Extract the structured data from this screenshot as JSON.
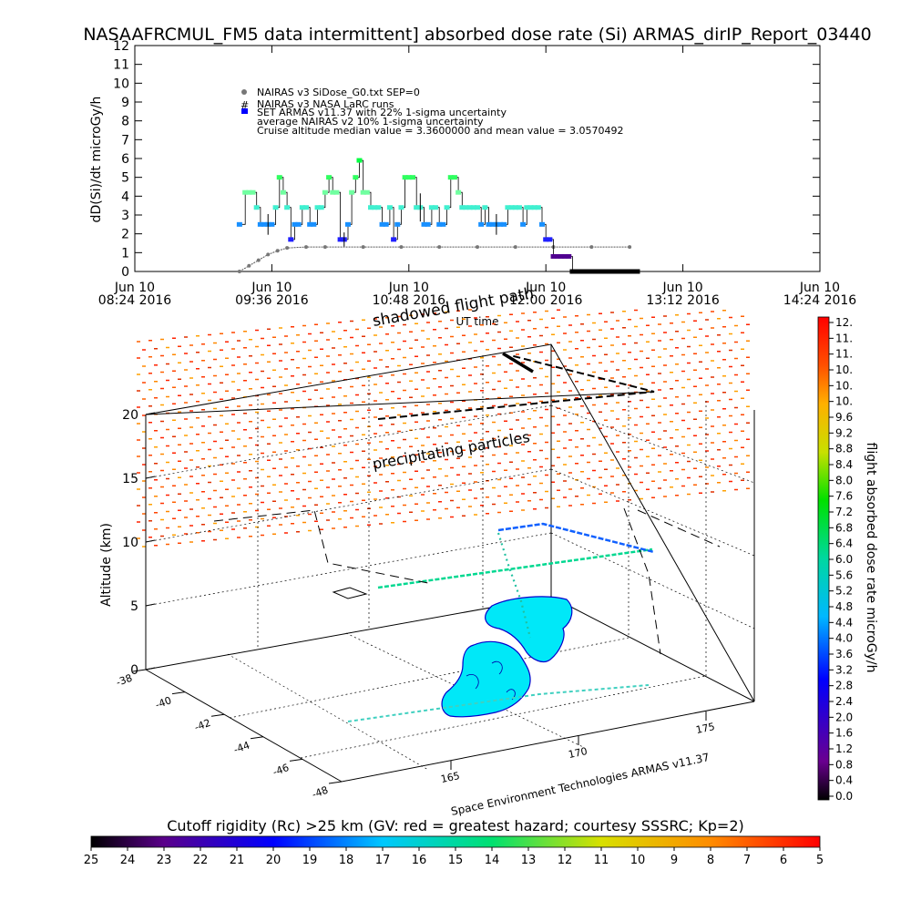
{
  "chart_data": [
    {
      "type": "line",
      "title": "NASAAFRCMUL_FM5 data intermittent] absorbed dose rate (Si) ARMAS_dirIP_Report_03440",
      "ylabel": "dD(Si)/dt microGy/h",
      "xlabel": "UT time",
      "ylim": [
        0,
        12
      ],
      "yticks": [
        "0",
        "1",
        "2",
        "3",
        "4",
        "5",
        "6",
        "7",
        "8",
        "9",
        "10",
        "11",
        "12"
      ],
      "xticks": [
        {
          "line1": "Jun 10",
          "line2": "08:24 2016"
        },
        {
          "line1": "Jun 10",
          "line2": "09:36 2016"
        },
        {
          "line1": "Jun 10",
          "line2": "10:48 2016"
        },
        {
          "line1": "Jun 10",
          "line2": "12:00 2016"
        },
        {
          "line1": "Jun 10",
          "line2": "13:12 2016"
        },
        {
          "line1": "Jun 10",
          "line2": "14:24 2016"
        }
      ],
      "legend": [
        "NAIRAS v3 SiDose_G0.txt SEP=0",
        "NAIRAS v3 NASA LaRC runs",
        "SET ARMAS v11.37 with 22% 1-sigma uncertainty",
        "average NAIRAS v2 10% 1-sigma uncertainty",
        "Cruise altitude median value = 3.3600000 and mean value = 3.0570492"
      ],
      "legend_placement": "top-left",
      "colors": {
        "nairas": "#707070",
        "armas_marker": "#0000ff"
      },
      "series": [
        {
          "name": "SET ARMAS v11.37 with 22% 1-sigma uncertainty",
          "x_minutes_from_0824": [
            55,
            58,
            60,
            62,
            64,
            66,
            68,
            70,
            72,
            74,
            76,
            78,
            80,
            82,
            84,
            86,
            88,
            90,
            92,
            94,
            96,
            98,
            100,
            102,
            104,
            106,
            108,
            110,
            112,
            114,
            116,
            118,
            120,
            122,
            124,
            126,
            128,
            130,
            132,
            134,
            136,
            138,
            140,
            142,
            144,
            146,
            148,
            150,
            152,
            154,
            156,
            158,
            160,
            162,
            164,
            166,
            168,
            170,
            172,
            174,
            176,
            178,
            180,
            182,
            184,
            186,
            188,
            190,
            192,
            194,
            196,
            198,
            200,
            202,
            204,
            206,
            208,
            210,
            212,
            214,
            216,
            218,
            220,
            222,
            224,
            226,
            228,
            230,
            232,
            234,
            236,
            238,
            240,
            242,
            244,
            246,
            248,
            250,
            252,
            254,
            256,
            258,
            260,
            262,
            264
          ],
          "values": [
            2.5,
            4.2,
            4.2,
            4.2,
            3.4,
            2.5,
            2.5,
            2.5,
            2.5,
            3.4,
            5.0,
            4.2,
            3.4,
            1.7,
            2.5,
            2.5,
            3.4,
            3.4,
            2.5,
            2.5,
            3.4,
            3.4,
            4.2,
            5.0,
            4.2,
            4.2,
            1.7,
            1.7,
            2.5,
            4.2,
            5.0,
            5.9,
            4.2,
            4.2,
            3.4,
            3.4,
            3.4,
            2.5,
            2.5,
            3.4,
            1.7,
            2.5,
            3.4,
            5.0,
            5.0,
            5.0,
            3.4,
            3.4,
            2.5,
            2.5,
            3.4,
            3.4,
            2.5,
            2.5,
            3.4,
            5.0,
            5.0,
            4.2,
            3.4,
            3.4,
            3.4,
            3.4,
            3.4,
            2.5,
            3.4,
            2.5,
            2.5,
            2.5,
            2.5,
            2.5,
            3.4,
            3.4,
            3.4,
            3.4,
            2.5,
            3.4,
            3.4,
            3.4,
            3.4,
            2.5,
            1.7,
            1.7,
            0.8,
            0.8,
            0.8,
            0.8,
            0.8,
            0.0,
            0.0,
            0.0,
            0.0,
            0.0,
            0.0,
            0.0,
            0.0,
            0.0,
            0.0,
            0.0,
            0.0,
            0.0,
            0.0,
            0.0,
            0.0,
            0.0,
            0.0
          ]
        },
        {
          "name": "NAIRAS v3 SiDose_G0.txt SEP=0",
          "x_minutes_from_0824": [
            55,
            60,
            65,
            70,
            75,
            80,
            90,
            100,
            120,
            140,
            160,
            180,
            200,
            220,
            240,
            260
          ],
          "values": [
            0.0,
            0.3,
            0.6,
            0.9,
            1.1,
            1.25,
            1.3,
            1.3,
            1.3,
            1.3,
            1.3,
            1.3,
            1.3,
            1.3,
            1.3,
            1.3
          ]
        }
      ]
    },
    {
      "type": "scatter",
      "subtype": "3d-trajectory",
      "zlabel": "Altitude (km)",
      "ztick_values": [
        "0",
        "5",
        "10",
        "15",
        "20"
      ],
      "ytick_values": [
        "-38",
        "-40",
        "-42",
        "-44",
        "-46",
        "-48"
      ],
      "xtick_values": [
        "165",
        "170",
        "175"
      ],
      "annotations": [
        "shadowed flight path",
        "precipitating particles",
        "Space Environment Technologies ARMAS v11.37"
      ],
      "colorbar_label": "flight absorbed dose rate microGy/h",
      "colorbar_ticks": [
        "12.",
        "11.",
        "11.",
        "10.",
        "10.",
        "10.",
        "9.6",
        "9.2",
        "8.8",
        "8.4",
        "8.0",
        "7.6",
        "7.2",
        "6.8",
        "6.4",
        "6.0",
        "5.6",
        "5.2",
        "4.8",
        "4.4",
        "4.0",
        "3.6",
        "3.2",
        "2.8",
        "2.4",
        "2.0",
        "1.6",
        "1.2",
        "0.8",
        "0.4",
        "0.0"
      ]
    },
    {
      "type": "heatmap",
      "subtype": "colorbar",
      "title": "Cutoff rigidity (Rc) >25 km (GV: red = greatest hazard; courtesy SSSRC; Kp=2)",
      "ticks": [
        "25",
        "24",
        "23",
        "22",
        "21",
        "20",
        "19",
        "18",
        "17",
        "16",
        "15",
        "14",
        "13",
        "12",
        "11",
        "10",
        "9",
        "8",
        "7",
        "6",
        "5"
      ]
    }
  ]
}
